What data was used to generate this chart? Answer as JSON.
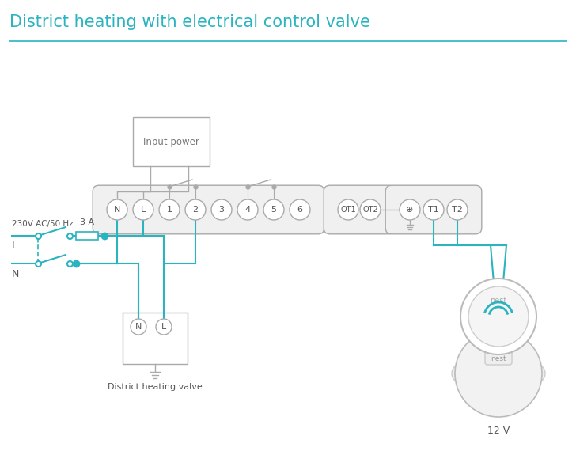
{
  "title": "District heating with electrical control valve",
  "title_color": "#2ab4c0",
  "title_fontsize": 15,
  "bg_color": "#ffffff",
  "wire_color": "#2ab4c0",
  "gray_color": "#aaaaaa",
  "text_color": "#555555",
  "fuse_label": "3 A",
  "left_label": "230V AC/50 Hz",
  "L_label": "L",
  "N_label": "N",
  "input_power_label": "Input power",
  "valve_label": "District heating valve",
  "nest_label": "12 V",
  "group1_labels": [
    "N",
    "L",
    "1",
    "2",
    "3",
    "4",
    "5",
    "6"
  ],
  "group2_labels": [
    "OT1",
    "OT2"
  ],
  "group3_labels": [
    "⊕",
    "T1",
    "T2"
  ]
}
